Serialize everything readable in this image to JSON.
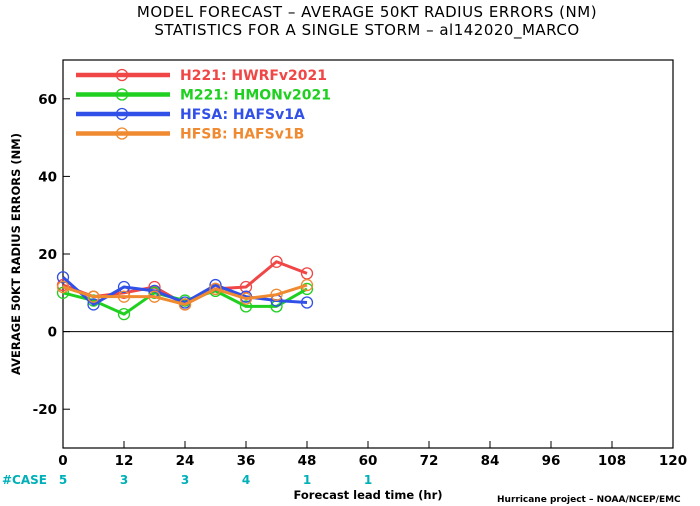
{
  "chart_data": {
    "type": "line",
    "title": "MODEL FORECAST – AVERAGE 50KT RADIUS ERRORS (NM)",
    "subtitle": "STATISTICS FOR A SINGLE STORM – al142020_MARCO",
    "xlabel": "Forecast lead time (hr)",
    "ylabel": "AVERAGE 50KT RADIUS ERRORS (NM)",
    "xlim": [
      0,
      120
    ],
    "ylim": [
      -30,
      70
    ],
    "xticks": [
      0,
      12,
      24,
      36,
      48,
      60,
      72,
      84,
      96,
      108,
      120
    ],
    "yticks": [
      -20,
      0,
      20,
      40,
      60
    ],
    "zero_line": true,
    "grid": false,
    "legend_position": "top-left",
    "series": [
      {
        "name": "H221: HWRFv2021",
        "color": "#f04646",
        "x": [
          0,
          6,
          12,
          18,
          24,
          30,
          36,
          42,
          48
        ],
        "y": [
          12,
          9,
          10,
          11.5,
          7,
          11,
          11.5,
          18,
          15
        ]
      },
      {
        "name": "M221: HMONv2021",
        "color": "#20d020",
        "x": [
          0,
          6,
          12,
          18,
          24,
          30,
          36,
          42,
          48
        ],
        "y": [
          10,
          8,
          4.5,
          10,
          8,
          10.5,
          6.5,
          6.5,
          11
        ]
      },
      {
        "name": "HFSA: HAFSv1A",
        "color": "#3050e8",
        "x": [
          0,
          6,
          12,
          18,
          24,
          30,
          36,
          42,
          48
        ],
        "y": [
          14,
          7,
          11.5,
          10.5,
          7.5,
          12,
          9,
          8,
          7.5
        ]
      },
      {
        "name": "HFSB: HAFSv1B",
        "color": "#f08a30",
        "x": [
          0,
          6,
          12,
          18,
          24,
          30,
          36,
          42,
          48
        ],
        "y": [
          11.5,
          9,
          9,
          9,
          7,
          11,
          8.5,
          9.5,
          12
        ]
      }
    ],
    "case_label": "#CASE",
    "case_counts": [
      {
        "x": 0,
        "n": "5"
      },
      {
        "x": 12,
        "n": "3"
      },
      {
        "x": 24,
        "n": "3"
      },
      {
        "x": 36,
        "n": "4"
      },
      {
        "x": 48,
        "n": "1"
      },
      {
        "x": 60,
        "n": "1"
      }
    ],
    "credit": "Hurricane project – NOAA/NCEP/EMC"
  }
}
